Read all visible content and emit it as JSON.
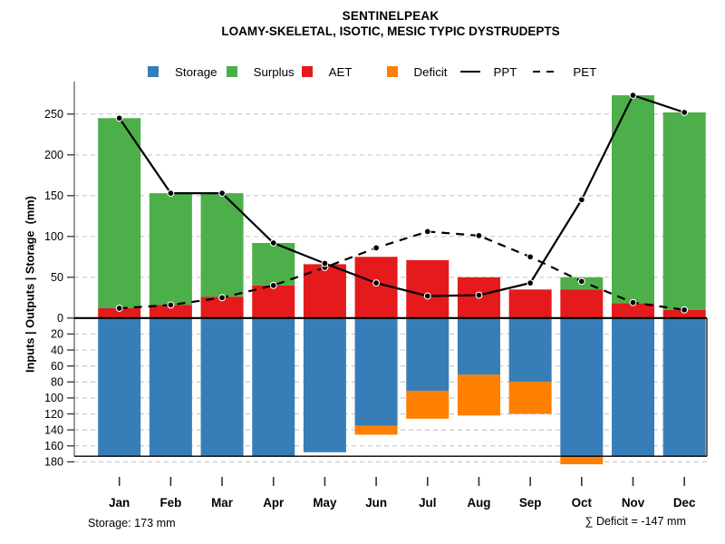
{
  "title": "SENTINELPEAK",
  "subtitle": "LOAMY-SKELETAL, ISOTIC, MESIC TYPIC DYSTRUDEPTS",
  "y_axis_label": "Inputs | Outputs | Storage  (mm)",
  "annotations": {
    "storage": "Storage: 173 mm",
    "deficit_sum": "∑ Deficit = -147 mm"
  },
  "legend": [
    {
      "label": "Storage",
      "swatch": "square",
      "color": "#377EB8",
      "gap_after": 10
    },
    {
      "label": "Surplus",
      "swatch": "square",
      "color": "#4DAF4A",
      "gap_after": 8
    },
    {
      "label": "AET",
      "swatch": "square",
      "color": "#E41A1C",
      "gap_after": 38
    },
    {
      "label": "Deficit",
      "swatch": "square",
      "color": "#FF7F00",
      "gap_after": 14
    },
    {
      "label": "PPT",
      "swatch": "solid-line",
      "color": "#000000",
      "gap_after": 18
    },
    {
      "label": "PET",
      "swatch": "dashed-line",
      "color": "#000000",
      "gap_after": 0
    }
  ],
  "colors": {
    "storage": "#377EB8",
    "surplus": "#4DAF4A",
    "aet": "#E41A1C",
    "deficit": "#FF7F00",
    "line": "#000000",
    "grid": "#C9C9C9",
    "axis": "#7A7A7A",
    "tick": "#333333"
  },
  "chart_data": {
    "type": "bar",
    "subtype": "monthly-water-balance; stacked bars above zero (AET+Surplus) and below zero (Storage+Deficit) with PPT/PET marker lines",
    "title": "SENTINELPEAK",
    "subtitle": "LOAMY-SKELETAL, ISOTIC, MESIC TYPIC DYSTRUDEPTS",
    "ylabel": "Inputs | Outputs | Storage  (mm)",
    "categories": [
      "Jan",
      "Feb",
      "Mar",
      "Apr",
      "May",
      "Jun",
      "Jul",
      "Aug",
      "Sep",
      "Oct",
      "Nov",
      "Dec"
    ],
    "series": [
      {
        "name": "AET",
        "type": "bar",
        "axis": "upper",
        "color": "#E41A1C",
        "values": [
          12,
          16,
          26,
          40,
          66,
          75,
          71,
          50,
          35,
          35,
          18,
          10
        ]
      },
      {
        "name": "Surplus",
        "type": "bar",
        "axis": "upper",
        "stacked_on": "AET",
        "color": "#4DAF4A",
        "values": [
          233,
          137,
          127,
          52,
          0,
          0,
          0,
          0,
          0,
          15,
          255,
          242
        ]
      },
      {
        "name": "Storage",
        "type": "bar",
        "axis": "lower",
        "color": "#377EB8",
        "values": [
          173,
          173,
          173,
          173,
          168,
          135,
          91,
          71,
          80,
          173,
          173,
          173
        ]
      },
      {
        "name": "Deficit",
        "type": "bar",
        "axis": "lower",
        "stacked_on": "Storage",
        "color": "#FF7F00",
        "values": [
          0,
          0,
          0,
          0,
          0,
          11,
          35,
          51,
          40,
          10,
          0,
          0
        ]
      },
      {
        "name": "PPT",
        "type": "line",
        "style": "solid",
        "marker": "circle",
        "color": "#000000",
        "values": [
          245,
          153,
          153,
          92,
          67,
          43,
          27,
          28,
          43,
          145,
          273,
          252
        ]
      },
      {
        "name": "PET",
        "type": "line",
        "style": "dashed",
        "marker": "circle",
        "color": "#000000",
        "values": [
          12,
          16,
          25,
          40,
          62,
          86,
          106,
          101,
          75,
          45,
          19,
          10
        ]
      }
    ],
    "upper_axis": {
      "ticks": [
        0,
        50,
        100,
        150,
        200,
        250
      ],
      "range": [
        0,
        283
      ],
      "unit": "mm",
      "direction": "up"
    },
    "lower_axis": {
      "ticks": [
        20,
        40,
        60,
        80,
        100,
        120,
        140,
        160,
        180
      ],
      "range": [
        0,
        183
      ],
      "unit": "mm",
      "direction": "down"
    },
    "grid": true,
    "legend_position": "top",
    "annotations": [
      "Storage: 173 mm",
      "∑ Deficit = -147 mm"
    ]
  }
}
